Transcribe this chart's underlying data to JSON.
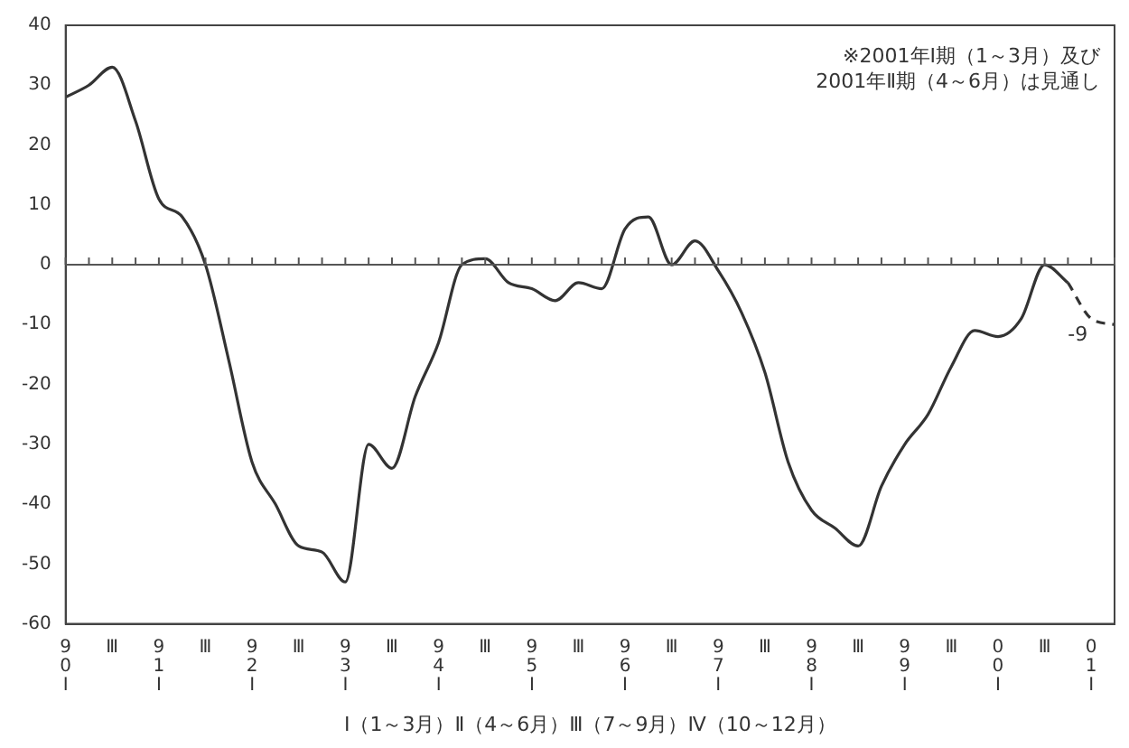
{
  "chart_data": {
    "type": "line",
    "categories": [
      "90Ⅰ",
      null,
      "Ⅲ",
      null,
      "91Ⅰ",
      null,
      "Ⅲ",
      null,
      "92Ⅰ",
      null,
      "Ⅲ",
      null,
      "93Ⅰ",
      null,
      "Ⅲ",
      null,
      "94Ⅰ",
      null,
      "Ⅲ",
      null,
      "95Ⅰ",
      null,
      "Ⅲ",
      null,
      "96Ⅰ",
      null,
      "Ⅲ",
      null,
      "97Ⅰ",
      null,
      "Ⅲ",
      null,
      "98Ⅰ",
      null,
      "Ⅲ",
      null,
      "99Ⅰ",
      null,
      "Ⅲ",
      null,
      "00Ⅰ",
      null,
      "Ⅲ",
      null,
      "01Ⅰ",
      null
    ],
    "series": [
      {
        "color": "#333333",
        "line_style": "solid",
        "values": [
          28,
          30,
          33,
          24,
          11,
          8,
          0,
          -16,
          -33,
          -40,
          -47,
          -48,
          -53,
          -30,
          -34,
          -22,
          -13,
          0,
          1,
          -3,
          -4,
          -6,
          -3,
          -4,
          6,
          8,
          0,
          4,
          -1,
          -8,
          -18,
          -33,
          -41,
          -44,
          -47,
          -37,
          -30,
          -25,
          -17,
          -11,
          -12,
          -9,
          0,
          -3,
          null,
          null
        ]
      },
      {
        "color": "#333333",
        "line_style": "dashed",
        "values": [
          null,
          null,
          null,
          null,
          null,
          null,
          null,
          null,
          null,
          null,
          null,
          null,
          null,
          null,
          null,
          null,
          null,
          null,
          null,
          null,
          null,
          null,
          null,
          null,
          null,
          null,
          null,
          null,
          null,
          null,
          null,
          null,
          null,
          null,
          null,
          null,
          null,
          null,
          null,
          null,
          null,
          null,
          null,
          -3,
          -9,
          -10
        ],
        "value_labels": [
          null,
          null,
          null,
          null,
          null,
          null,
          null,
          null,
          null,
          null,
          null,
          null,
          null,
          null,
          null,
          null,
          null,
          null,
          null,
          null,
          null,
          null,
          null,
          null,
          null,
          null,
          null,
          null,
          null,
          null,
          null,
          null,
          null,
          null,
          null,
          null,
          null,
          null,
          null,
          null,
          null,
          null,
          null,
          null,
          "-9",
          null
        ]
      }
    ],
    "xlabel": "Ⅰ（1～3月）Ⅱ（4～6月）Ⅲ（7～9月）Ⅳ（10～12月）",
    "ylim": [
      -60,
      40
    ],
    "yticks": [
      -60,
      -50,
      -40,
      -30,
      -20,
      -10,
      0,
      10,
      20,
      30,
      40
    ],
    "grid": false,
    "legend": false,
    "marker": "none",
    "ref_lines": [
      {
        "axis": "y",
        "value": 0,
        "color": "#555555"
      }
    ],
    "annotations": [
      "※2001年Ⅰ期（1～3月）及び\n2001年Ⅱ期（4～6月）は見通し"
    ]
  }
}
